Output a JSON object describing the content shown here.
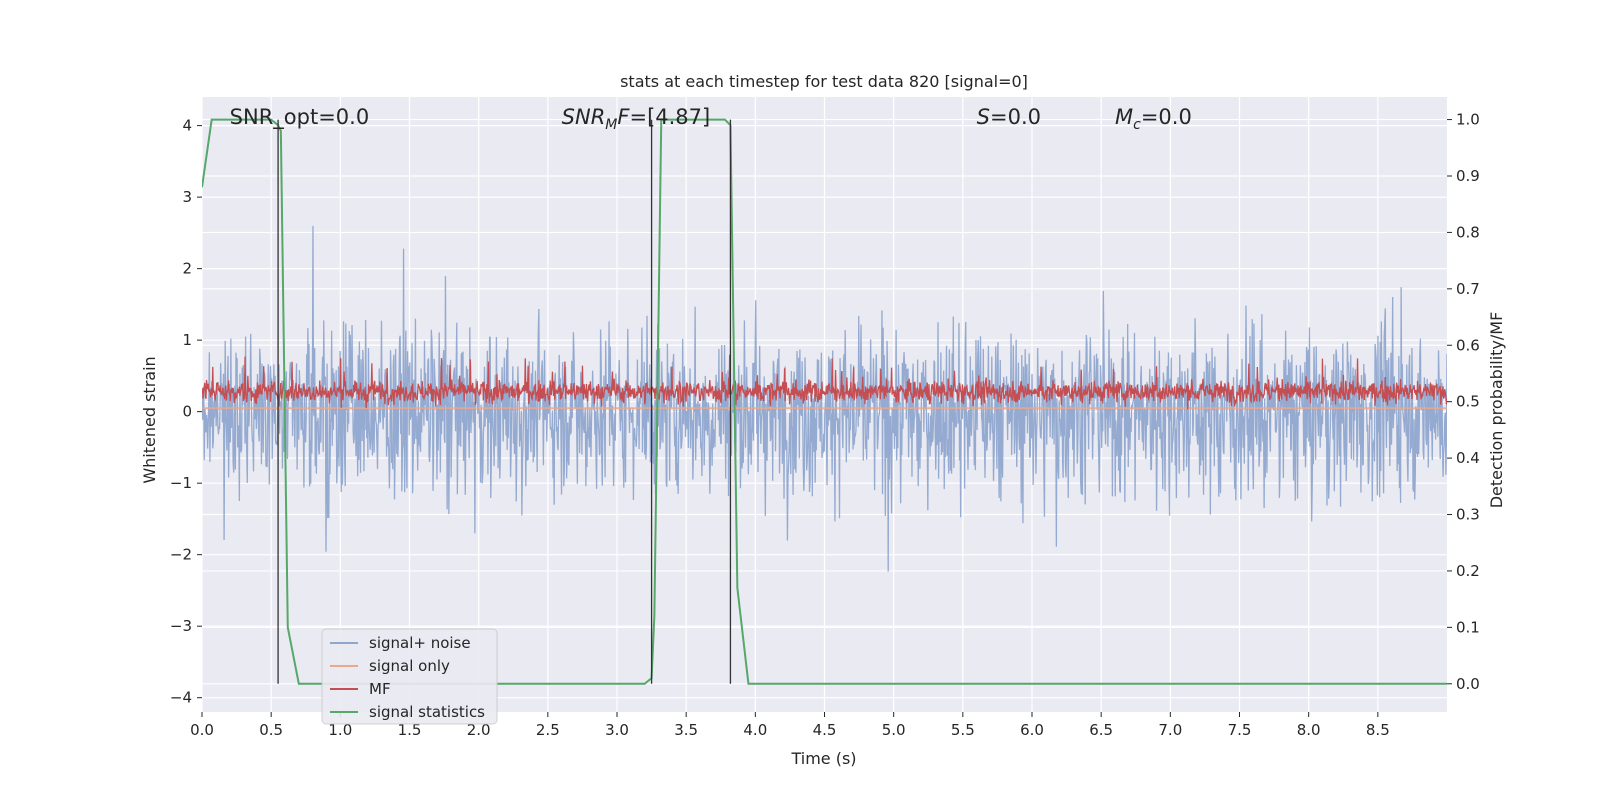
{
  "chart_data": {
    "type": "line",
    "title": "stats at each timestep for test data 820 [signal=0]",
    "xlabel": "Time (s)",
    "ylabel": "Whitened strain",
    "ylabel_right": "Detection probability/MF",
    "xlim": [
      0,
      9.0
    ],
    "ylim": [
      -4.2,
      4.4
    ],
    "ylim_right": [
      -0.05,
      1.04
    ],
    "x_ticks": [
      0.0,
      0.5,
      1.0,
      1.5,
      2.0,
      2.5,
      3.0,
      3.5,
      4.0,
      4.5,
      5.0,
      5.5,
      6.0,
      6.5,
      7.0,
      7.5,
      8.0,
      8.5
    ],
    "x_tick_labels": [
      "0.0",
      "0.5",
      "1.0",
      "1.5",
      "2.0",
      "2.5",
      "3.0",
      "3.5",
      "4.0",
      "4.5",
      "5.0",
      "5.5",
      "6.0",
      "6.5",
      "7.0",
      "7.5",
      "8.0",
      "8.5"
    ],
    "y_ticks": [
      4,
      3,
      2,
      1,
      0,
      -1,
      -2,
      -3,
      -4
    ],
    "y_tick_labels": [
      "4",
      "3",
      "2",
      "1",
      "0",
      "−1",
      "−2",
      "−3",
      "−4"
    ],
    "y_ticks_right": [
      1.0,
      0.9,
      0.8,
      0.7,
      0.6,
      0.5,
      0.4,
      0.3,
      0.2,
      0.1,
      0.0
    ],
    "y_tick_labels_right": [
      "1.0",
      "0.9",
      "0.8",
      "0.7",
      "0.6",
      "0.5",
      "0.4",
      "0.3",
      "0.2",
      "0.1",
      "0.0"
    ],
    "grid": true,
    "legend_position": "lower-left",
    "annotations": [
      {
        "text": "SNR_opt=0.0",
        "x": 0.2
      },
      {
        "text": "SNR_MF=[4.87]",
        "x": 2.6,
        "math": true
      },
      {
        "text": "S=0.0",
        "x": 5.6,
        "math_s": true
      },
      {
        "text": "M_c=0.0",
        "x": 6.6,
        "math_m": true
      }
    ],
    "vertical_markers": [
      0.55,
      3.25,
      3.82
    ],
    "series": [
      {
        "name": "signal+ noise",
        "color": "#8fa6cd",
        "kind": "noise",
        "axis": "left",
        "amplitude": 1.45,
        "n_points": 2200
      },
      {
        "name": "signal only",
        "color": "#eaa88c",
        "kind": "flat",
        "axis": "left",
        "value": 0.05
      },
      {
        "name": "MF",
        "color": "#c44e52",
        "kind": "mf",
        "axis": "left",
        "center": 0.28,
        "amplitude": 0.22,
        "n_points": 2200
      },
      {
        "name": "signal statistics",
        "color": "#55a868",
        "kind": "stat",
        "axis": "right",
        "x": [
          0.0,
          0.07,
          0.5,
          0.55,
          0.57,
          0.62,
          0.7,
          3.2,
          3.25,
          3.27,
          3.32,
          3.78,
          3.82,
          3.87,
          3.95,
          8.5,
          8.6,
          9.0
        ],
        "values": [
          0.88,
          1.0,
          1.0,
          0.99,
          0.98,
          0.1,
          0.0,
          0.0,
          0.01,
          0.12,
          1.0,
          1.0,
          0.99,
          0.17,
          0.0,
          0.0,
          0.0,
          0.0
        ]
      }
    ]
  }
}
